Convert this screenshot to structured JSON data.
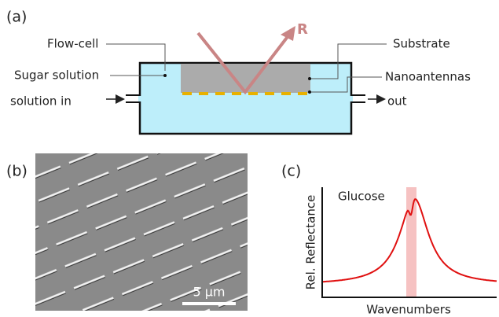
{
  "panels": [
    {
      "label": "(a)",
      "beam_label": "R",
      "labels": [
        "Flow-cell",
        "Sugar solution",
        "solution in",
        "Substrate",
        "Nanoantennas",
        "out"
      ]
    },
    {
      "label": "(b)",
      "scale_bar": "5 µm"
    },
    {
      "label": "(c)",
      "y_axis_label": "Rel. Reflectance",
      "x_axis_label": "Wavenumbers",
      "annotation": "Glucose"
    }
  ]
}
